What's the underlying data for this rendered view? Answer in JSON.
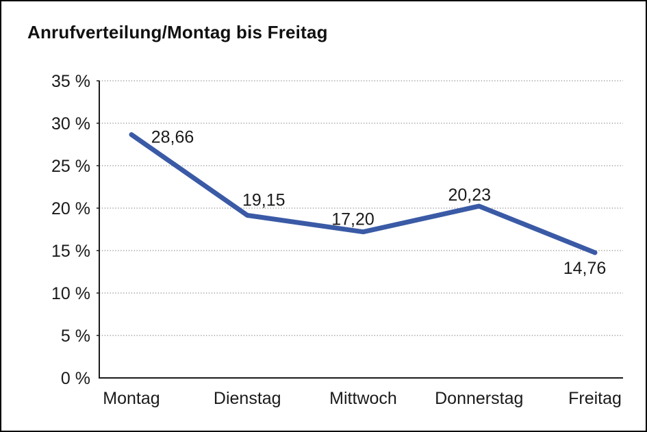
{
  "window": {
    "background": "#ffffff",
    "border_color": "#000000"
  },
  "chart_data": {
    "type": "line",
    "title": "Anrufverteilung/Montag bis Freitag",
    "categories": [
      "Montag",
      "Dienstag",
      "Mittwoch",
      "Donnerstag",
      "Freitag"
    ],
    "values": [
      28.66,
      19.15,
      17.2,
      20.23,
      14.76
    ],
    "value_labels": [
      "28,66",
      "19,15",
      "17,20",
      "20,23",
      "14,76"
    ],
    "y_tick_labels": [
      "0 %",
      "5 %",
      "10 %",
      "15 %",
      "20 %",
      "25 %",
      "30 %",
      "35 %"
    ],
    "ylim": [
      0,
      35
    ],
    "y_step": 5,
    "xlabel": "",
    "ylabel": "",
    "grid": "dotted-horizontal",
    "legend_position": "none",
    "series_color": "#3a5aa6",
    "axis_color": "#1a1a1a",
    "gridline_color": "#8c8c8c",
    "label_color": "#1a1a1a"
  }
}
